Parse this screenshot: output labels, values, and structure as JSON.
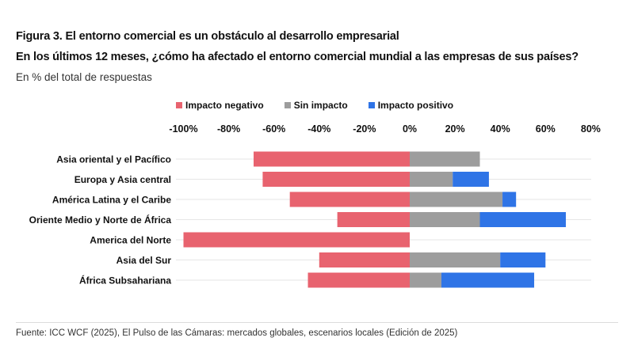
{
  "title": "Figura 3. El entorno comercial es un obstáculo al desarrollo empresarial",
  "subtitle": "En los últimos 12 meses, ¿cómo ha afectado el entorno comercial mundial a las empresas de sus países?",
  "unit_note": "En % del total de respuestas",
  "footer": "Fuente: ICC WCF (2025), El Pulso de las Cámaras: mercados globales, escenarios locales (Edición de 2025)",
  "chart_data": {
    "type": "bar",
    "orientation": "horizontal",
    "stacked": "diverging",
    "title": "Figura 3. El entorno comercial es un obstáculo al desarrollo empresarial",
    "xlabel": "",
    "ylabel": "",
    "xlim": [
      -100,
      80
    ],
    "xticks": [
      -100,
      -80,
      -60,
      -40,
      -20,
      0,
      20,
      40,
      60,
      80
    ],
    "xtick_labels": [
      "-100%",
      "-80%",
      "-60%",
      "-40%",
      "-20%",
      "0%",
      "20%",
      "40%",
      "60%",
      "80%"
    ],
    "grid": "horizontal row lines",
    "legend_position": "top",
    "categories": [
      "Asia oriental y el Pacífico",
      "Europa y Asia central",
      "América Latina y el Caribe",
      "Oriente Medio y Norte de África",
      "America del Norte",
      "Asia del Sur",
      "África Subsahariana"
    ],
    "series": [
      {
        "name": "Impacto negativo",
        "color": "#e8636f",
        "values": [
          -69,
          -65,
          -53,
          -32,
          -100,
          -40,
          -45
        ]
      },
      {
        "name": "Sin impacto",
        "color": "#9d9d9d",
        "values": [
          31,
          19,
          41,
          31,
          0,
          40,
          14
        ]
      },
      {
        "name": "Impacto positivo",
        "color": "#2f74e6",
        "values": [
          0,
          16,
          6,
          38,
          0,
          20,
          41
        ]
      }
    ]
  }
}
